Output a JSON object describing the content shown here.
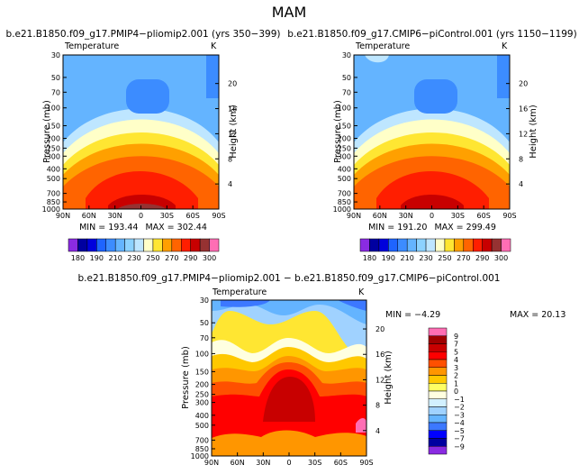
{
  "figure_title": "MAM",
  "chart_data": [
    {
      "type": "heatmap",
      "title": "b.e21.B1850.f09_g17.PMIP4−pliomip2.001  (yrs  350−399)",
      "variable": "Temperature",
      "units": "K",
      "xlabel": "",
      "ylabel": "Pressure  (mb)",
      "y2label": "Height  (km)",
      "x_tick_labels": [
        "90N",
        "60N",
        "30N",
        "0",
        "30S",
        "60S",
        "90S"
      ],
      "y_tick_labels": [
        "30",
        "50",
        "70",
        "100",
        "150",
        "200",
        "250",
        "300",
        "400",
        "500",
        "700",
        "850",
        "1000"
      ],
      "y2_tick_labels": [
        "20",
        "16",
        "12",
        "8",
        "4"
      ],
      "min_label": "MIN = 193.44",
      "max_label": "MAX = 302.44",
      "min": 193.44,
      "max": 302.44,
      "colorbar_levels": [
        "180",
        "190",
        "210",
        "230",
        "250",
        "270",
        "290",
        "300"
      ]
    },
    {
      "type": "heatmap",
      "title": "b.e21.B1850.f09_g17.CMIP6−piControl.001  (yrs  1150−1199)",
      "variable": "Temperature",
      "units": "K",
      "xlabel": "",
      "ylabel": "Pressure  (mb)",
      "y2label": "Height  (km)",
      "x_tick_labels": [
        "90N",
        "60N",
        "30N",
        "0",
        "30S",
        "60S",
        "90S"
      ],
      "y_tick_labels": [
        "30",
        "50",
        "70",
        "100",
        "150",
        "200",
        "250",
        "300",
        "400",
        "500",
        "700",
        "850",
        "1000"
      ],
      "y2_tick_labels": [
        "20",
        "16",
        "12",
        "8",
        "4"
      ],
      "min_label": "MIN = 191.20",
      "max_label": "MAX = 299.49",
      "min": 191.2,
      "max": 299.49,
      "colorbar_levels": [
        "180",
        "190",
        "210",
        "230",
        "250",
        "270",
        "290",
        "300"
      ]
    },
    {
      "type": "heatmap",
      "title": "b.e21.B1850.f09_g17.PMIP4−pliomip2.001  −  b.e21.B1850.f09_g17.CMIP6−piControl.001",
      "variable": "Temperature",
      "units": "K",
      "xlabel": "",
      "ylabel": "Pressure  (mb)",
      "y2label": "Height  (km)",
      "x_tick_labels": [
        "90N",
        "60N",
        "30N",
        "0",
        "30S",
        "60S",
        "90S"
      ],
      "y_tick_labels": [
        "30",
        "50",
        "70",
        "100",
        "150",
        "200",
        "250",
        "300",
        "400",
        "500",
        "700",
        "850",
        "1000"
      ],
      "y2_tick_labels": [
        "20",
        "16",
        "12",
        "8",
        "4"
      ],
      "min_label": "MIN =  −4.29",
      "max_label": "MAX =  20.13",
      "min": -4.29,
      "max": 20.13,
      "colorbar_levels": [
        "9",
        "7",
        "5",
        "4",
        "3",
        "2",
        "1",
        "0",
        "−1",
        "−2",
        "−3",
        "−4",
        "−5",
        "−7",
        "−9"
      ]
    }
  ],
  "palettes": {
    "absolute": [
      "#8a2be2",
      "#0000a0",
      "#0000dc",
      "#1e64ff",
      "#3c8cff",
      "#64b4ff",
      "#8cd2ff",
      "#bee6ff",
      "#ffffc8",
      "#ffe632",
      "#ffa000",
      "#ff6400",
      "#ff1e00",
      "#c80000",
      "#963232",
      "#ff6eb4"
    ],
    "difference": [
      "#ff6eb4",
      "#a00000",
      "#c80000",
      "#ff0000",
      "#ff5000",
      "#ff9600",
      "#ffc800",
      "#ffff64",
      "#ffffe0",
      "#d2f0ff",
      "#a0d2ff",
      "#64b4ff",
      "#3c78ff",
      "#0000ff",
      "#0000a0",
      "#8a2be2"
    ]
  }
}
